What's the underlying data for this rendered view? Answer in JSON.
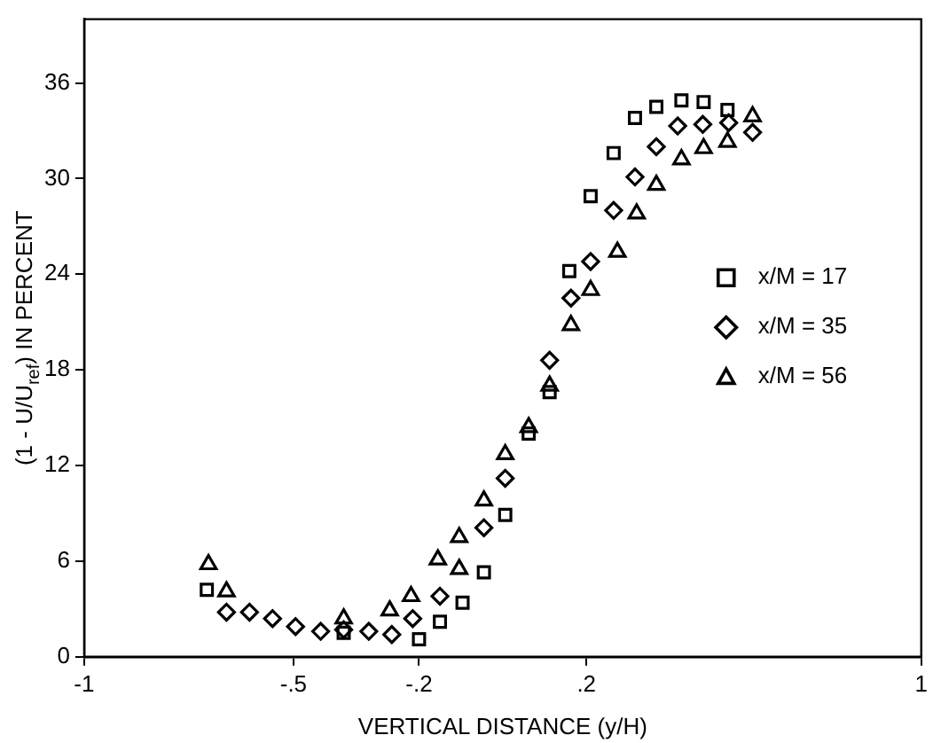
{
  "chart_data": {
    "type": "scatter",
    "xlabel": "VERTICAL DISTANCE (y/H)",
    "ylabel": "(1 - U/U$_{ref}$) IN PERCENT",
    "xlim": [
      -1,
      1
    ],
    "xticks": [
      -1,
      {
        "value": -0.5,
        "label": "-.5"
      },
      {
        "value": -0.2,
        "label": "-.2"
      },
      {
        "value": 0.2,
        "label": ".2"
      },
      1
    ],
    "ylim": [
      0,
      40
    ],
    "yticks": [
      0,
      6,
      12,
      18,
      24,
      30,
      36
    ],
    "grid": false,
    "legend": "right",
    "series": [
      {
        "name": "x/M = 17",
        "color": "#000000",
        "marker": "square",
        "x": [
          -0.707,
          -0.38,
          -0.2,
          -0.15,
          -0.096,
          -0.045,
          0.006,
          0.062,
          0.112,
          0.159,
          0.21,
          0.265,
          0.316,
          0.367,
          0.427,
          0.48,
          0.537
        ],
        "values": [
          4.2,
          1.5,
          1.1,
          2.2,
          3.4,
          5.3,
          8.9,
          14.0,
          16.6,
          24.2,
          28.9,
          31.6,
          33.8,
          34.5,
          34.9,
          34.8,
          34.3
        ]
      },
      {
        "name": "x/M = 35",
        "color": "#000000",
        "marker": "diamond",
        "x": [
          -0.66,
          -0.605,
          -0.55,
          -0.495,
          -0.435,
          -0.38,
          -0.32,
          -0.265,
          -0.215,
          -0.15,
          -0.045,
          0.006,
          0.112,
          0.163,
          0.21,
          0.265,
          0.316,
          0.367,
          0.418,
          0.478,
          0.54,
          0.597
        ],
        "values": [
          2.8,
          2.8,
          2.4,
          1.9,
          1.6,
          1.7,
          1.6,
          1.4,
          2.4,
          3.8,
          8.1,
          11.2,
          18.6,
          22.5,
          24.8,
          28.0,
          30.1,
          32.0,
          33.3,
          33.4,
          33.5,
          32.9
        ]
      },
      {
        "name": "x/M = 56",
        "color": "#000000",
        "marker": "triangle",
        "x": [
          -0.703,
          -0.66,
          -0.38,
          -0.27,
          -0.219,
          -0.155,
          -0.104,
          -0.104,
          -0.045,
          0.006,
          0.062,
          0.112,
          0.163,
          0.21,
          0.274,
          0.32,
          0.367,
          0.427,
          0.48,
          0.537,
          0.597
        ],
        "values": [
          5.8,
          4.1,
          2.4,
          2.9,
          3.8,
          6.1,
          5.5,
          7.5,
          9.8,
          12.7,
          14.4,
          17.0,
          20.8,
          23.0,
          25.4,
          27.8,
          29.6,
          31.2,
          31.9,
          32.3,
          33.9
        ]
      }
    ]
  }
}
